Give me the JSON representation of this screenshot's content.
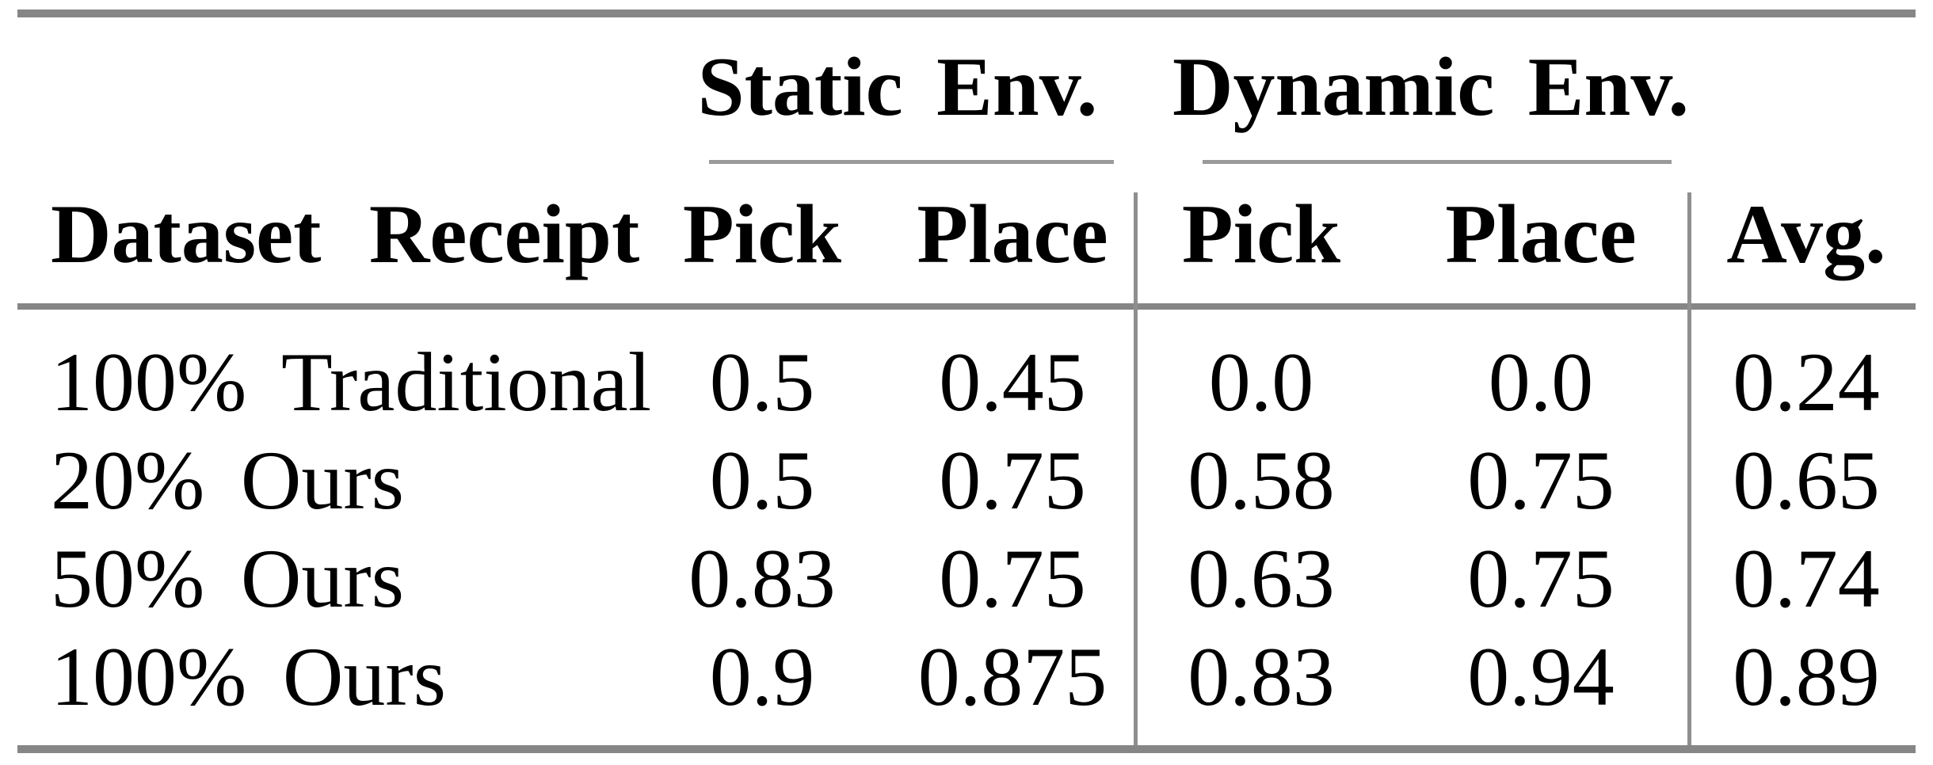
{
  "figure": {
    "type": "results-table",
    "group_headers": {
      "static": "Static Env.",
      "dynamic": "Dynamic Env."
    },
    "column_headers": {
      "dataset": "Dataset Receipt",
      "pick": "Pick",
      "place": "Place",
      "avg": "Avg."
    },
    "rows": [
      {
        "dataset": "100% Traditional",
        "static_pick": "0.5",
        "static_place": "0.45",
        "dynamic_pick": "0.0",
        "dynamic_place": "0.0",
        "avg": "0.24"
      },
      {
        "dataset": "20% Ours",
        "static_pick": "0.5",
        "static_place": "0.75",
        "dynamic_pick": "0.58",
        "dynamic_place": "0.75",
        "avg": "0.65"
      },
      {
        "dataset": "50% Ours",
        "static_pick": "0.83",
        "static_place": "0.75",
        "dynamic_pick": "0.63",
        "dynamic_place": "0.75",
        "avg": "0.74"
      },
      {
        "dataset": "100% Ours",
        "static_pick": "0.9",
        "static_place": "0.875",
        "dynamic_pick": "0.83",
        "dynamic_place": "0.94",
        "avg": "0.89"
      }
    ],
    "colors": {
      "rule_gray": "#868686",
      "light_rule_gray": "#9a9a9a",
      "vline_gray": "#8f8f8f",
      "text": "#000000",
      "background": "#ffffff"
    }
  }
}
